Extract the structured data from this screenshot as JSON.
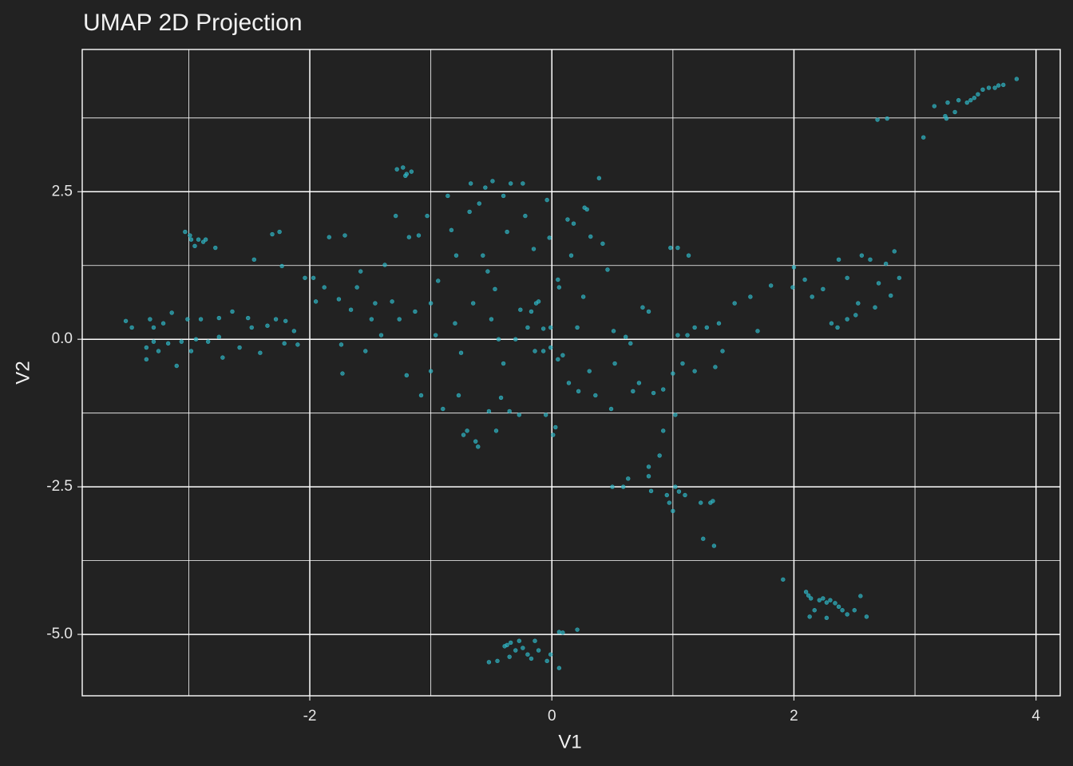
{
  "chart_data": {
    "type": "scatter",
    "title": "UMAP 2D Projection",
    "x_label": "V1",
    "y_label": "V2",
    "color": "#2fb3c2",
    "grid": true,
    "xlim": [
      -3.88,
      4.2
    ],
    "ylim": [
      -6.04,
      4.91
    ],
    "xticks": [
      -2,
      0,
      2,
      4
    ],
    "yticks": [
      {
        "value": -5,
        "label": "-5.0"
      },
      -2.5,
      {
        "value": 0,
        "label": "0.0"
      },
      2.5
    ],
    "x_minor_grid": [
      -3,
      -1,
      1,
      3
    ],
    "y_minor_grid": [
      -3.75,
      -1.25,
      1.25,
      3.75
    ],
    "x": [
      3.07,
      3.16,
      3.25,
      3.27,
      3.33,
      3.36,
      3.43,
      3.46,
      3.49,
      3.52,
      3.56,
      3.61,
      3.66,
      3.69,
      3.73,
      3.84,
      2.69,
      2.77,
      3.26,
      1.91,
      2.1,
      2.12,
      2.14,
      2.21,
      2.24,
      2.27,
      2.3,
      2.34,
      2.37,
      2.4,
      2.55,
      2.6,
      2.44,
      2.13,
      2.27,
      2.5,
      2.17,
      -0.52,
      -0.45,
      -0.37,
      -0.34,
      -0.3,
      -0.27,
      -0.24,
      -0.2,
      -0.17,
      -0.14,
      -0.11,
      -0.04,
      -0.01,
      0.06,
      0.06,
      0.09,
      0.21,
      -0.35,
      -0.39,
      0.5,
      0.59,
      0.63,
      0.8,
      0.8,
      0.89,
      0.92,
      0.82,
      0.95,
      0.97,
      1.0,
      1.02,
      1.05,
      1.1,
      1.23,
      1.25,
      1.31,
      1.33,
      1.34,
      1.02,
      2.09,
      2.15,
      2.24,
      2.31,
      2.37,
      2.44,
      2.36,
      2.53,
      2.56,
      2.63,
      2.7,
      2.76,
      2.83,
      2.8,
      2.87,
      2.67,
      2.44,
      2.51,
      1.99,
      2.0,
      1.81,
      1.64,
      1.51,
      1.38,
      1.28,
      1.18,
      1.12,
      1.04,
      1.18,
      1.08,
      1.0,
      0.92,
      0.84,
      0.72,
      0.67,
      0.65,
      0.8,
      0.75,
      0.98,
      1.04,
      1.13,
      1.7,
      1.41,
      1.35,
      -3.52,
      -3.47,
      -3.35,
      -3.35,
      -3.32,
      -3.29,
      -3.25,
      -3.21,
      -3.17,
      -3.14,
      -3.1,
      -3.06,
      -3.01,
      -2.98,
      -2.94,
      -2.9,
      -2.84,
      -2.75,
      -2.72,
      -2.64,
      -2.58,
      -2.51,
      -2.48,
      -2.41,
      -2.35,
      -2.28,
      -2.21,
      -2.2,
      -2.13,
      -2.1,
      -2.75,
      -3.29,
      -3.03,
      -2.99,
      -2.98,
      -2.92,
      -2.88,
      -2.86,
      -2.95,
      -2.78,
      -2.46,
      -2.31,
      -2.25,
      -2.23,
      -1.28,
      -1.23,
      -1.2,
      -1.16,
      -1.21,
      -2.04,
      -1.97,
      -1.95,
      -1.88,
      -1.84,
      -1.76,
      -1.74,
      -1.73,
      -1.71,
      -1.66,
      -1.61,
      -1.58,
      -1.54,
      -1.49,
      -1.46,
      -1.41,
      -1.38,
      -1.32,
      -1.29,
      -1.26,
      -1.2,
      -1.18,
      -1.13,
      -1.1,
      -1.08,
      -1.03,
      -1.0,
      -1.0,
      -0.96,
      -0.94,
      -0.9,
      -0.86,
      -0.83,
      -0.8,
      -0.79,
      -0.77,
      -0.75,
      -0.73,
      -0.7,
      -0.68,
      -0.67,
      -0.65,
      -0.63,
      -0.61,
      -0.6,
      -0.57,
      -0.55,
      -0.53,
      -0.52,
      -0.5,
      -0.49,
      -0.47,
      -0.46,
      -0.44,
      -0.42,
      -0.4,
      -0.4,
      -0.37,
      -0.35,
      -0.34,
      -0.3,
      -0.27,
      -0.26,
      -0.24,
      -0.22,
      -0.2,
      -0.17,
      -0.15,
      -0.14,
      -0.13,
      -0.11,
      -0.07,
      -0.05,
      -0.04,
      -0.02,
      -0.01,
      0.01,
      0.03,
      0.05,
      0.06,
      0.09,
      0.13,
      0.14,
      0.16,
      0.18,
      0.21,
      0.22,
      0.26,
      0.27,
      0.29,
      0.31,
      0.32,
      0.36,
      0.39,
      0.42,
      0.46,
      0.49,
      0.51,
      0.52,
      0.61,
      -0.01,
      -0.07,
      0.05
    ],
    "values": [
      3.42,
      3.95,
      3.78,
      4.01,
      3.85,
      4.05,
      4.01,
      4.05,
      4.09,
      4.15,
      4.23,
      4.26,
      4.26,
      4.3,
      4.31,
      4.41,
      3.72,
      3.74,
      3.74,
      -4.07,
      -4.28,
      -4.34,
      -4.39,
      -4.42,
      -4.39,
      -4.46,
      -4.42,
      -4.47,
      -4.53,
      -4.59,
      -4.35,
      -4.7,
      -4.66,
      -4.7,
      -4.72,
      -4.59,
      -4.59,
      -5.47,
      -5.45,
      -5.18,
      -5.14,
      -5.27,
      -5.11,
      -5.23,
      -5.34,
      -5.41,
      -5.11,
      -5.27,
      -5.45,
      -5.34,
      -5.57,
      -4.96,
      -4.97,
      -4.92,
      -5.38,
      -5.2,
      -2.5,
      -2.5,
      -2.36,
      -2.32,
      -2.16,
      -1.97,
      -1.55,
      -2.57,
      -2.64,
      -2.77,
      -2.91,
      -2.5,
      -2.58,
      -2.64,
      -2.77,
      -3.38,
      -2.77,
      -2.74,
      -3.5,
      -1.28,
      1.01,
      0.72,
      0.85,
      0.27,
      1.35,
      1.04,
      0.2,
      0.61,
      1.42,
      1.35,
      0.95,
      1.28,
      1.49,
      0.74,
      1.04,
      0.54,
      0.34,
      0.41,
      0.88,
      1.22,
      0.91,
      0.72,
      0.61,
      0.27,
      0.2,
      0.2,
      0.07,
      0.07,
      -0.54,
      -0.41,
      -0.58,
      -0.85,
      -0.91,
      -0.74,
      -0.88,
      -0.07,
      0.47,
      0.54,
      1.55,
      1.55,
      1.42,
      0.14,
      -0.2,
      -0.47,
      0.31,
      0.2,
      -0.14,
      -0.34,
      0.34,
      -0.04,
      -0.2,
      0.27,
      -0.07,
      0.45,
      -0.45,
      -0.04,
      0.34,
      -0.2,
      0.0,
      0.34,
      -0.04,
      0.36,
      -0.31,
      0.47,
      -0.14,
      0.36,
      0.2,
      -0.23,
      0.23,
      0.34,
      -0.07,
      0.31,
      0.14,
      -0.09,
      0.04,
      0.2,
      1.82,
      1.76,
      1.69,
      1.69,
      1.65,
      1.69,
      1.58,
      1.55,
      1.35,
      1.78,
      1.82,
      1.24,
      2.88,
      2.91,
      2.8,
      2.84,
      2.77,
      1.04,
      1.04,
      0.64,
      0.88,
      1.73,
      0.68,
      -0.09,
      -0.58,
      1.76,
      0.5,
      0.88,
      1.15,
      -0.2,
      0.34,
      0.61,
      0.07,
      1.26,
      0.64,
      2.09,
      0.34,
      -0.61,
      1.73,
      0.47,
      1.76,
      -0.95,
      2.09,
      0.61,
      -0.54,
      0.07,
      0.99,
      -1.18,
      2.43,
      1.85,
      0.27,
      1.42,
      -0.95,
      -0.23,
      -1.62,
      -1.55,
      2.16,
      2.64,
      0.61,
      -1.73,
      -1.82,
      2.3,
      1.42,
      2.57,
      1.15,
      -1.22,
      0.34,
      2.68,
      0.85,
      -1.55,
      0.0,
      -0.99,
      2.43,
      -0.41,
      1.82,
      -1.22,
      2.64,
      0.0,
      -1.28,
      0.5,
      2.64,
      2.09,
      0.2,
      0.47,
      1.53,
      -0.2,
      0.61,
      0.64,
      0.18,
      -1.28,
      2.36,
      1.72,
      0.2,
      -1.62,
      -1.49,
      1.01,
      0.88,
      -0.27,
      2.03,
      -0.74,
      1.42,
      1.96,
      0.2,
      -0.88,
      0.72,
      2.23,
      2.2,
      -0.54,
      1.74,
      -0.95,
      2.73,
      1.62,
      1.18,
      -1.18,
      0.14,
      -0.41,
      0.04,
      -0.14,
      -0.2,
      -0.34
    ]
  }
}
